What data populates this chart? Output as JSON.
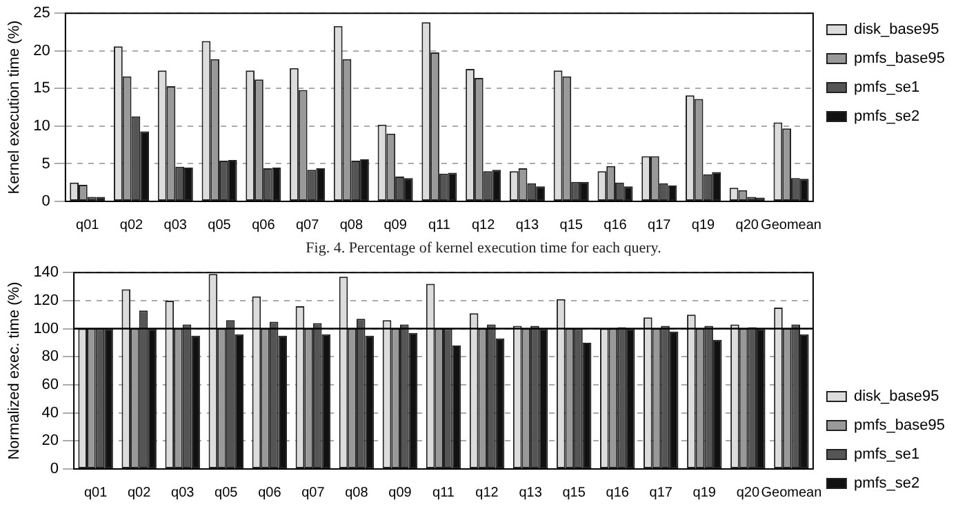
{
  "chart_data": [
    {
      "type": "bar",
      "ylabel": "Kernel execution time (%)",
      "annotations": [
        "Fig. 4.  Percentage of kernel execution time for each query."
      ],
      "categories": [
        "q01",
        "q02",
        "q03",
        "q05",
        "q06",
        "q07",
        "q08",
        "q09",
        "q11",
        "q12",
        "q13",
        "q15",
        "q16",
        "q17",
        "q19",
        "q20",
        "Geomean"
      ],
      "series": [
        {
          "name": "disk_base95",
          "color": "#dcdcdc",
          "values": [
            2.5,
            20.6,
            17.4,
            21.3,
            17.4,
            17.7,
            23.3,
            10.2,
            23.8,
            17.6,
            4.0,
            17.4,
            4.0,
            6.0,
            14.1,
            1.8,
            10.5
          ]
        },
        {
          "name": "pmfs_base95",
          "color": "#999999",
          "values": [
            2.2,
            16.6,
            15.3,
            18.9,
            16.2,
            14.8,
            18.9,
            9.0,
            19.8,
            16.4,
            4.4,
            16.6,
            4.7,
            6.0,
            13.6,
            1.5,
            9.7
          ]
        },
        {
          "name": "pmfs_se1",
          "color": "#555555",
          "values": [
            0.6,
            11.3,
            4.6,
            5.4,
            4.4,
            4.2,
            5.4,
            3.3,
            3.7,
            4.0,
            2.4,
            2.6,
            2.5,
            2.4,
            3.6,
            0.6,
            3.1
          ]
        },
        {
          "name": "pmfs_se2",
          "color": "#111111",
          "values": [
            0.6,
            9.3,
            4.5,
            5.5,
            4.5,
            4.4,
            5.6,
            3.1,
            3.8,
            4.2,
            2.0,
            2.6,
            2.0,
            2.1,
            3.9,
            0.5,
            3.0
          ]
        }
      ],
      "ylim": [
        0,
        25
      ],
      "yticks": [
        0,
        5,
        10,
        15,
        20,
        25
      ],
      "grid": "y",
      "legend": "top right"
    },
    {
      "type": "bar",
      "ylabel": "Normalized exec. time (%)",
      "categories": [
        "q01",
        "q02",
        "q03",
        "q05",
        "q06",
        "q07",
        "q08",
        "q09",
        "q11",
        "q12",
        "q13",
        "q15",
        "q16",
        "q17",
        "q19",
        "q20",
        "Geomean"
      ],
      "series": [
        {
          "name": "disk_base95",
          "color": "#dcdcdc",
          "values": [
            100,
            128,
            120,
            139,
            123,
            116,
            137,
            106,
            132,
            111,
            102,
            121,
            100,
            108,
            110,
            103,
            115
          ]
        },
        {
          "name": "pmfs_base95",
          "color": "#999999",
          "values": [
            100,
            100,
            100,
            100,
            100,
            100,
            100,
            100,
            100,
            100,
            100,
            100,
            100,
            100,
            100,
            100,
            100
          ]
        },
        {
          "name": "pmfs_se1",
          "color": "#555555",
          "values": [
            100,
            113,
            103,
            106,
            105,
            104,
            107,
            103,
            100,
            103,
            102,
            100,
            101,
            102,
            102,
            101,
            103
          ]
        },
        {
          "name": "pmfs_se2",
          "color": "#111111",
          "values": [
            100,
            100,
            95,
            96,
            95,
            96,
            95,
            97,
            88,
            93,
            100,
            90,
            100,
            98,
            92,
            100,
            96
          ]
        }
      ],
      "ylim": [
        0,
        140
      ],
      "yticks": [
        0,
        20,
        40,
        60,
        80,
        100,
        120,
        140
      ],
      "grid": "y",
      "legend": "bottom right",
      "ref_lines": [
        {
          "axis": "y",
          "value": 100,
          "color": "#000000"
        }
      ]
    }
  ]
}
